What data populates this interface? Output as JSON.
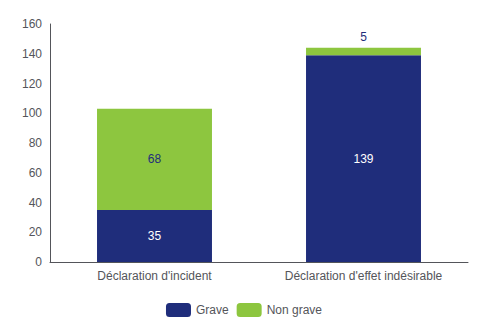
{
  "chart_data": {
    "type": "bar",
    "stacked": true,
    "categories": [
      "Déclaration d'incident",
      "Déclaration d'effet indésirable"
    ],
    "series": [
      {
        "name": "Grave",
        "color": "#1F2D7B",
        "values": [
          35,
          139
        ]
      },
      {
        "name": "Non grave",
        "color": "#8DC63F",
        "values": [
          68,
          5
        ]
      }
    ],
    "ylim": [
      0,
      160
    ],
    "yticks": [
      0,
      20,
      40,
      60,
      80,
      100,
      120,
      140,
      160
    ],
    "grid": false,
    "legend": "bottom",
    "data_labels": true
  }
}
